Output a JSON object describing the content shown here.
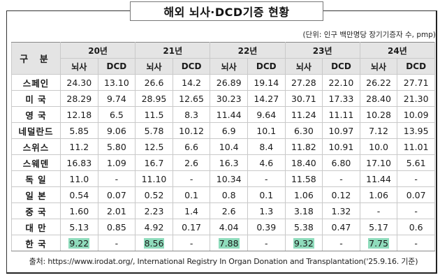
{
  "title": "해외 뇌사·DCD기증 현황",
  "unit": "(단위: 인구 백만명당 장기기증자 수, pmp)",
  "table": {
    "corner_label": "구  분",
    "years": [
      "20년",
      "21년",
      "22년",
      "23년",
      "24년"
    ],
    "sub_headers": [
      "뇌사",
      "DCD"
    ],
    "rows": [
      {
        "country": "스페인",
        "values": [
          "24.30",
          "13.10",
          "26.6",
          "14.2",
          "26.89",
          "19.14",
          "27.28",
          "22.10",
          "26.22",
          "27.71"
        ]
      },
      {
        "country": "미 국",
        "values": [
          "28.29",
          "9.74",
          "28.95",
          "12.65",
          "30.23",
          "14.27",
          "30.71",
          "17.33",
          "28.40",
          "21.30"
        ]
      },
      {
        "country": "영 국",
        "values": [
          "12.18",
          "6.5",
          "11.5",
          "8.3",
          "11.44",
          "9.64",
          "11.24",
          "11.11",
          "10.28",
          "10.09"
        ]
      },
      {
        "country": "네덜란드",
        "values": [
          "5.85",
          "9.06",
          "5.78",
          "10.12",
          "6.9",
          "10.1",
          "6.30",
          "10.97",
          "7.12",
          "13.95"
        ]
      },
      {
        "country": "스위스",
        "values": [
          "11.2",
          "5.80",
          "12.5",
          "6.6",
          "10.4",
          "8.4",
          "11.82",
          "10.91",
          "10.0",
          "11.01"
        ]
      },
      {
        "country": "스웨덴",
        "values": [
          "16.83",
          "1.09",
          "16.7",
          "2.6",
          "16.3",
          "4.6",
          "18.40",
          "6.80",
          "17.10",
          "5.61"
        ]
      },
      {
        "country": "독 일",
        "values": [
          "11.0",
          "-",
          "11.10",
          "-",
          "10.34",
          "-",
          "11.58",
          "-",
          "11.44",
          "-"
        ]
      },
      {
        "country": "일 본",
        "values": [
          "0.54",
          "0.07",
          "0.52",
          "0.1",
          "0.8",
          "0.1",
          "1.06",
          "0.12",
          "1.06",
          "0.07"
        ]
      },
      {
        "country": "중 국",
        "values": [
          "1.60",
          "2.01",
          "2.23",
          "1.4",
          "2.6",
          "1.3",
          "3.18",
          "1.32",
          "-",
          "-"
        ]
      },
      {
        "country": "대 만",
        "values": [
          "5.13",
          "0.85",
          "4.92",
          "0.17",
          "4.04",
          "0.39",
          "5.38",
          "0.47",
          "5.17",
          "0.6"
        ]
      },
      {
        "country": "한 국",
        "values": [
          "9.22",
          "-",
          "8.56",
          "-",
          "7.88",
          "-",
          "9.32",
          "-",
          "7.75",
          "-"
        ],
        "highlight": true
      }
    ]
  },
  "highlight_color": "#8fdcbc",
  "source": "출처: https://www.irodat.org/, International Registry In Organ Donation and Transplantation('25.9.16. 기준)"
}
